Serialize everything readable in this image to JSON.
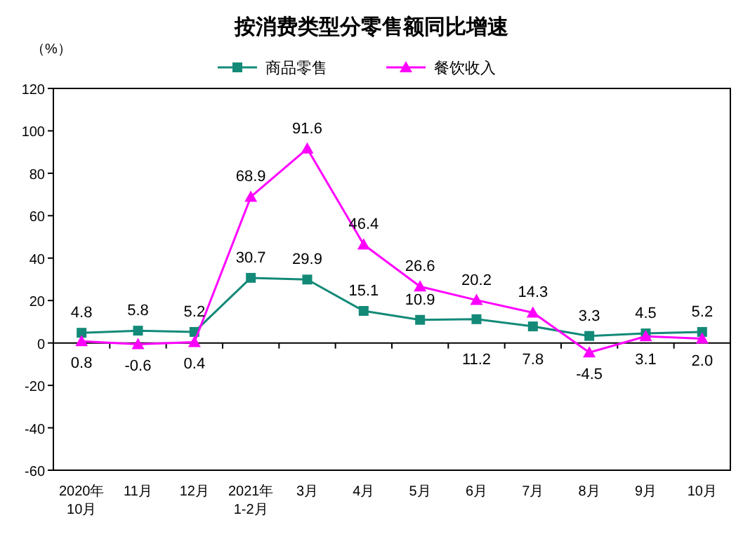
{
  "chart_data": {
    "type": "line",
    "title": "按消费类型分零售额同比增速",
    "ylabel": "（%）",
    "categories": [
      "2020年\n10月",
      "11月",
      "12月",
      "2021年\n1-2月",
      "3月",
      "4月",
      "5月",
      "6月",
      "7月",
      "8月",
      "9月",
      "10月"
    ],
    "series": [
      {
        "name": "商品零售",
        "color": "#138a78",
        "marker": "square",
        "values": [
          4.8,
          5.8,
          5.2,
          30.7,
          29.9,
          15.1,
          10.9,
          11.2,
          7.8,
          3.3,
          4.5,
          5.2
        ],
        "value_labels": [
          "4.8",
          "5.8",
          "5.2",
          "30.7",
          "29.9",
          "15.1",
          "10.9",
          "11.2",
          "7.8",
          "3.3",
          "4.5",
          "5.2"
        ]
      },
      {
        "name": "餐饮收入",
        "color": "#ff00ff",
        "marker": "triangle",
        "values": [
          0.8,
          -0.6,
          0.4,
          68.9,
          91.6,
          46.4,
          26.6,
          20.2,
          14.3,
          -4.5,
          3.1,
          2.0
        ],
        "value_labels": [
          "0.8",
          "-0.6",
          "0.4",
          "68.9",
          "91.6",
          "46.4",
          "26.6",
          "20.2",
          "14.3",
          "-4.5",
          "3.1",
          "2.0"
        ]
      }
    ],
    "ylim": [
      -60,
      120
    ],
    "yticks": [
      -60,
      -40,
      -20,
      0,
      20,
      40,
      60,
      80,
      100,
      120
    ],
    "legend": "top",
    "line_style": "solid"
  }
}
